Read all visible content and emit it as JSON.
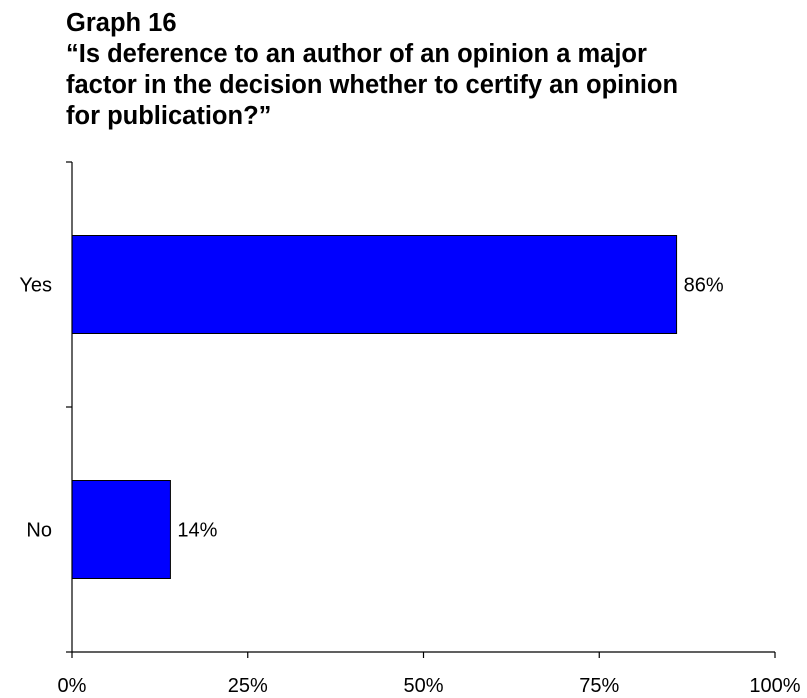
{
  "chart_data": {
    "type": "bar",
    "orientation": "horizontal",
    "title": "Graph 16",
    "subtitle_lines": [
      "“Is deference to an author of an opinion a major",
      "factor in the decision whether to certify an opinion",
      "for publication?”"
    ],
    "categories": [
      "Yes",
      "No"
    ],
    "values": [
      86,
      14
    ],
    "value_labels": [
      "86%",
      "14%"
    ],
    "xlim": [
      0,
      100
    ],
    "x_ticks": [
      0,
      25,
      50,
      75,
      100
    ],
    "x_tick_labels": [
      "0%",
      "25%",
      "50%",
      "75%",
      "100%"
    ],
    "xlabel": "",
    "ylabel": "",
    "grid": false,
    "legend": "none",
    "bar_color": "#0000FF",
    "bar_edge_color": "#000000"
  }
}
